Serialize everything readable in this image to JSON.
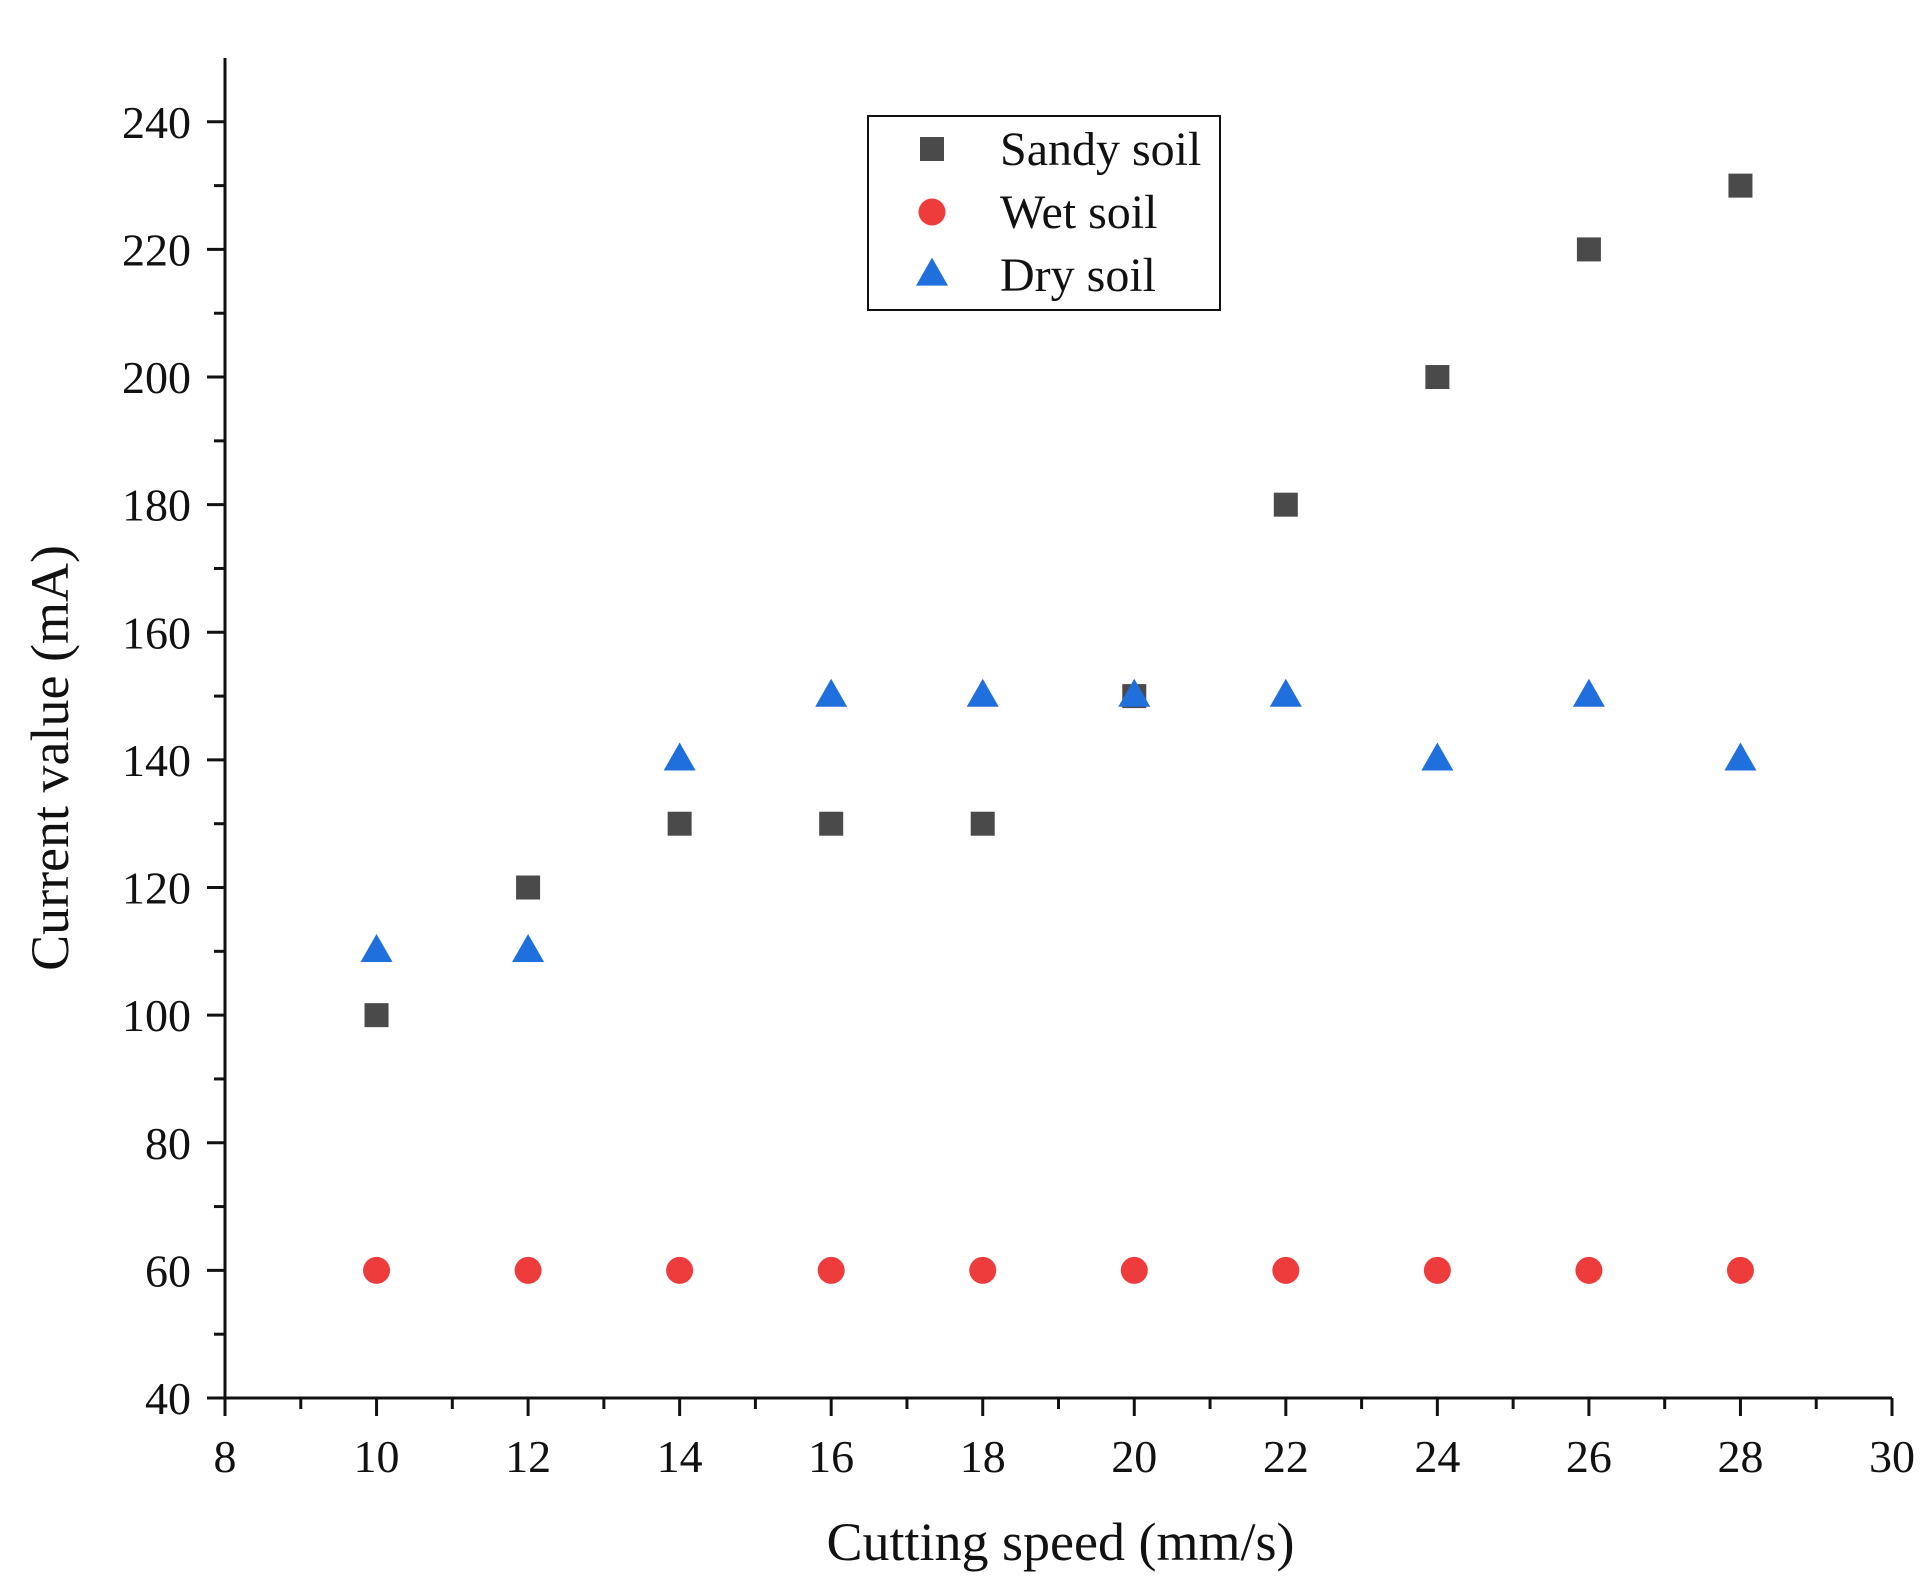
{
  "chart_data": {
    "type": "scatter",
    "title": "",
    "xlabel": "Cutting speed (mm/s)",
    "ylabel": "Current value (mA)",
    "xlim": [
      8,
      30
    ],
    "ylim": [
      40,
      250
    ],
    "xticks": [
      8,
      10,
      12,
      14,
      16,
      18,
      20,
      22,
      24,
      26,
      28,
      30
    ],
    "yticks": [
      40,
      60,
      80,
      100,
      120,
      140,
      160,
      180,
      200,
      220,
      240
    ],
    "grid": false,
    "legend_position": "top-center",
    "x": [
      10,
      12,
      14,
      16,
      18,
      20,
      22,
      24,
      26,
      28
    ],
    "series": [
      {
        "name": "Sandy soil",
        "marker": "square",
        "color": "#4a4a4a",
        "values": [
          100,
          120,
          130,
          130,
          130,
          150,
          180,
          200,
          220,
          230
        ]
      },
      {
        "name": "Wet soil",
        "marker": "circle",
        "color": "#ee3b3b",
        "values": [
          60,
          60,
          60,
          60,
          60,
          60,
          60,
          60,
          60,
          60
        ]
      },
      {
        "name": "Dry soil",
        "marker": "triangle",
        "color": "#1f6fdc",
        "values": [
          110,
          110,
          140,
          150,
          150,
          150,
          150,
          140,
          150,
          140
        ]
      }
    ]
  }
}
